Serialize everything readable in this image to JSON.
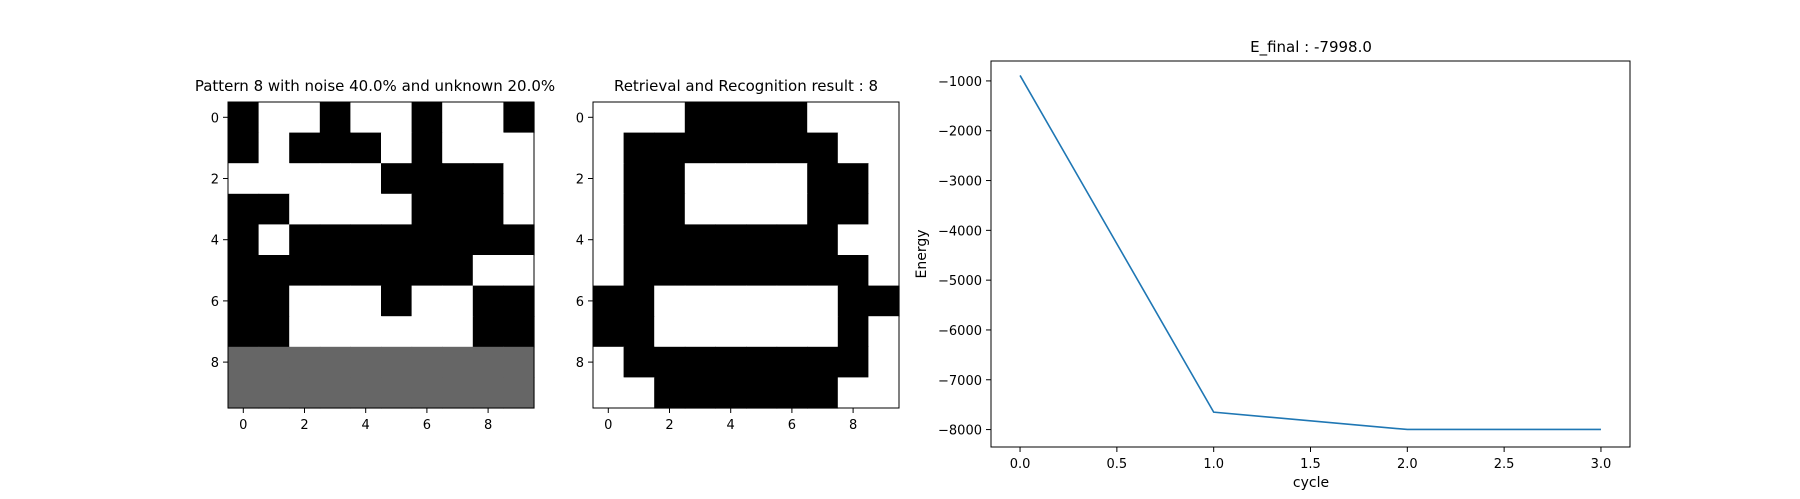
{
  "chart_data": [
    {
      "type": "heatmap",
      "title": "Pattern 8 with noise 40.0% and unknown 20.0%",
      "rows": 10,
      "cols": 10,
      "legend": "1 = black, 0 = white, -1 = unknown (gray)",
      "colors": {
        "1": "#000000",
        "0": "#ffffff",
        "-1": "#666666"
      },
      "x_ticks": [
        0,
        2,
        4,
        6,
        8
      ],
      "y_ticks": [
        0,
        2,
        4,
        6,
        8
      ],
      "grid": [
        [
          1,
          0,
          0,
          1,
          0,
          0,
          1,
          0,
          0,
          1
        ],
        [
          1,
          0,
          1,
          1,
          1,
          0,
          1,
          0,
          0,
          0
        ],
        [
          0,
          0,
          0,
          0,
          0,
          1,
          1,
          1,
          1,
          0
        ],
        [
          1,
          1,
          0,
          0,
          0,
          0,
          1,
          1,
          1,
          0
        ],
        [
          1,
          0,
          1,
          1,
          1,
          1,
          1,
          1,
          1,
          1
        ],
        [
          1,
          1,
          1,
          1,
          1,
          1,
          1,
          1,
          0,
          0
        ],
        [
          1,
          1,
          0,
          0,
          0,
          1,
          0,
          0,
          1,
          1
        ],
        [
          1,
          1,
          0,
          0,
          0,
          0,
          0,
          0,
          1,
          1
        ],
        [
          -1,
          -1,
          -1,
          -1,
          -1,
          -1,
          -1,
          -1,
          -1,
          -1
        ],
        [
          -1,
          -1,
          -1,
          -1,
          -1,
          -1,
          -1,
          -1,
          -1,
          -1
        ]
      ]
    },
    {
      "type": "heatmap",
      "title": "Retrieval and Recognition result : 8",
      "rows": 10,
      "cols": 10,
      "legend": "1 = black, 0 = white",
      "colors": {
        "1": "#000000",
        "0": "#ffffff"
      },
      "x_ticks": [
        0,
        2,
        4,
        6,
        8
      ],
      "y_ticks": [
        0,
        2,
        4,
        6,
        8
      ],
      "grid": [
        [
          0,
          0,
          0,
          1,
          1,
          1,
          1,
          0,
          0,
          0
        ],
        [
          0,
          1,
          1,
          1,
          1,
          1,
          1,
          1,
          0,
          0
        ],
        [
          0,
          1,
          1,
          0,
          0,
          0,
          0,
          1,
          1,
          0
        ],
        [
          0,
          1,
          1,
          0,
          0,
          0,
          0,
          1,
          1,
          0
        ],
        [
          0,
          1,
          1,
          1,
          1,
          1,
          1,
          1,
          0,
          0
        ],
        [
          0,
          1,
          1,
          1,
          1,
          1,
          1,
          1,
          1,
          0
        ],
        [
          1,
          1,
          0,
          0,
          0,
          0,
          0,
          0,
          1,
          1
        ],
        [
          1,
          1,
          0,
          0,
          0,
          0,
          0,
          0,
          1,
          0
        ],
        [
          0,
          1,
          1,
          1,
          1,
          1,
          1,
          1,
          1,
          0
        ],
        [
          0,
          0,
          1,
          1,
          1,
          1,
          1,
          1,
          0,
          0
        ]
      ]
    },
    {
      "type": "line",
      "title": "E_final : -7998.0",
      "xlabel": "cycle",
      "ylabel": "Energy",
      "xlim": [
        -0.15,
        3.15
      ],
      "ylim": [
        -8350,
        -600
      ],
      "x_ticks": [
        0.0,
        0.5,
        1.0,
        1.5,
        2.0,
        2.5,
        3.0
      ],
      "x_tick_labels": [
        "0.0",
        "0.5",
        "1.0",
        "1.5",
        "2.0",
        "2.5",
        "3.0"
      ],
      "y_ticks": [
        -1000,
        -2000,
        -3000,
        -4000,
        -5000,
        -6000,
        -7000,
        -8000
      ],
      "y_tick_labels": [
        "−1000",
        "−2000",
        "−3000",
        "−4000",
        "−5000",
        "−6000",
        "−7000",
        "−8000"
      ],
      "grid": false,
      "color": "#1f77b4",
      "x": [
        0,
        1,
        2,
        3
      ],
      "y": [
        -890,
        -7650,
        -7998,
        -7998
      ]
    }
  ]
}
